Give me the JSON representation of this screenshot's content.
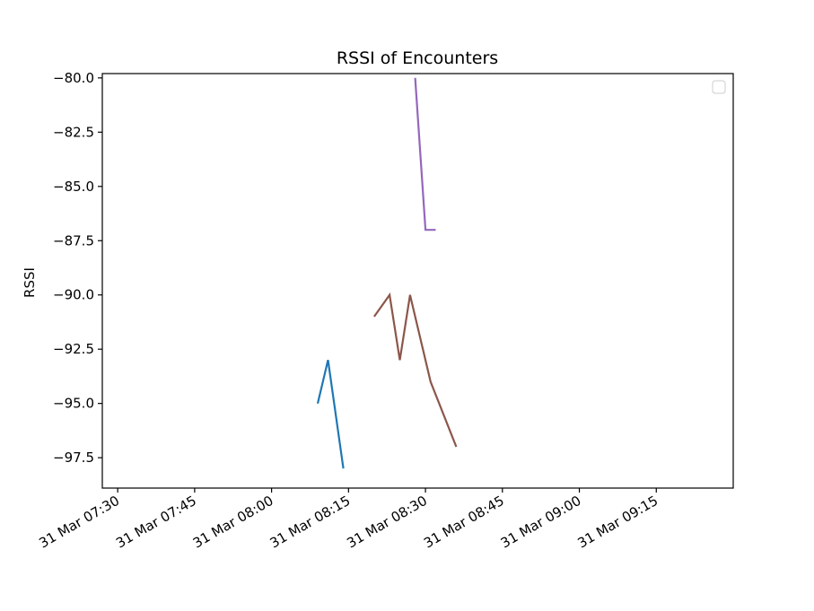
{
  "chart_data": {
    "type": "line",
    "title": "RSSI of Encounters",
    "xlabel": "",
    "ylabel": "RSSI",
    "x_axis_type": "time",
    "xlim": [
      "31 Mar 07:27",
      "31 Mar 09:30"
    ],
    "ylim": [
      -98.9,
      -79.8
    ],
    "x_ticks": [
      "31 Mar 07:30",
      "31 Mar 07:45",
      "31 Mar 08:00",
      "31 Mar 08:15",
      "31 Mar 08:30",
      "31 Mar 08:45",
      "31 Mar 09:00",
      "31 Mar 09:15"
    ],
    "y_ticks": [
      "−80.0",
      "−82.5",
      "−85.0",
      "−87.5",
      "−90.0",
      "−92.5",
      "−95.0",
      "−97.5"
    ],
    "y_tick_values": [
      -80.0,
      -82.5,
      -85.0,
      -87.5,
      -90.0,
      -92.5,
      -95.0,
      -97.5
    ],
    "grid": false,
    "legend": {
      "position": "top-right",
      "entries": []
    },
    "series": [
      {
        "color": "#1f77b4",
        "x": [
          "31 Mar 08:09",
          "31 Mar 08:11",
          "31 Mar 08:14"
        ],
        "y": [
          -95,
          -93,
          -98
        ]
      },
      {
        "color": "#9467bd",
        "x": [
          "31 Mar 08:28",
          "31 Mar 08:30",
          "31 Mar 08:32"
        ],
        "y": [
          -80,
          -87,
          -87
        ]
      },
      {
        "color": "#8c564b",
        "x": [
          "31 Mar 08:20",
          "31 Mar 08:23",
          "31 Mar 08:25",
          "31 Mar 08:27",
          "31 Mar 08:31",
          "31 Mar 08:36"
        ],
        "y": [
          -91,
          -90,
          -93,
          -90,
          -94,
          -97
        ]
      }
    ]
  }
}
